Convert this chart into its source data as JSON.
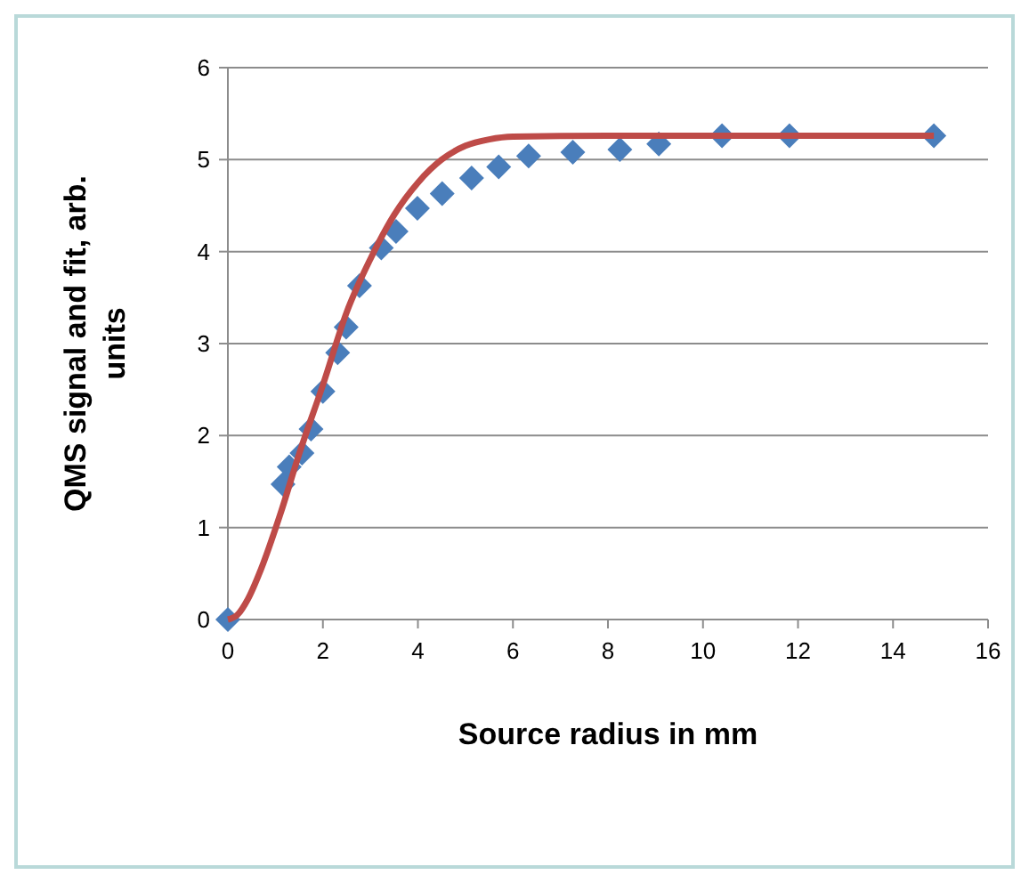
{
  "chart_data": {
    "type": "scatter",
    "xlabel": "Source radius in mm",
    "ylabel": "QMS signal and fit, arb. units",
    "xlim": [
      0,
      16
    ],
    "xticks": [
      0,
      2,
      4,
      6,
      8,
      10,
      12,
      14,
      16
    ],
    "ylim": [
      0,
      6
    ],
    "yticks": [
      0,
      1,
      2,
      3,
      4,
      5,
      6
    ],
    "grid": "y",
    "series": [
      {
        "type": "scatter",
        "marker": "diamond",
        "color": "#4a7ebb",
        "x": [
          0,
          1.16,
          1.29,
          1.56,
          1.75,
          2.0,
          2.31,
          2.49,
          2.77,
          3.23,
          3.54,
          3.99,
          4.51,
          5.13,
          5.7,
          6.33,
          7.26,
          8.25,
          9.07,
          10.4,
          11.82,
          14.86
        ],
        "values": [
          0,
          1.47,
          1.66,
          1.81,
          2.07,
          2.48,
          2.9,
          3.18,
          3.63,
          4.04,
          4.22,
          4.47,
          4.63,
          4.8,
          4.92,
          5.04,
          5.08,
          5.11,
          5.17,
          5.26,
          5.26,
          5.26
        ]
      },
      {
        "type": "line",
        "marker": "none",
        "line_style": "solid",
        "color": "#be4b48",
        "x": [
          0,
          0.2,
          0.42,
          0.7,
          1.1,
          1.5,
          2.0,
          2.5,
          3.0,
          3.5,
          4.0,
          4.5,
          5.0,
          5.5,
          6.0,
          8,
          10,
          12,
          14.86
        ],
        "values": [
          0,
          0.05,
          0.22,
          0.55,
          1.14,
          1.8,
          2.55,
          3.34,
          3.92,
          4.4,
          4.75,
          5.0,
          5.15,
          5.22,
          5.25,
          5.26,
          5.26,
          5.26,
          5.26
        ]
      }
    ]
  }
}
